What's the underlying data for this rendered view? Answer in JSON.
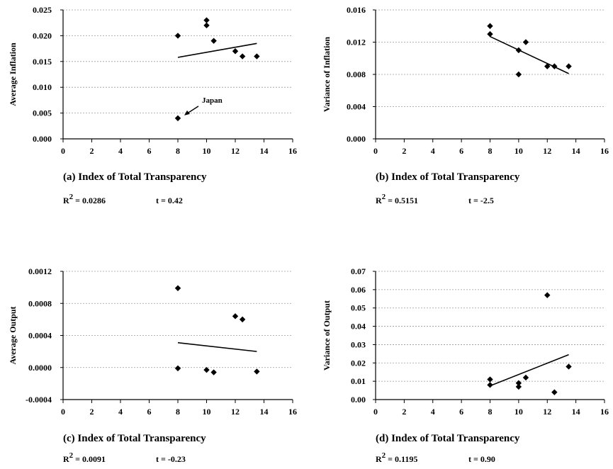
{
  "chart_data": [
    {
      "id": "a",
      "type": "scatter",
      "ylabel": "Average Inflation",
      "caption": "(a) Index of Total Transparency",
      "r2_label": "R",
      "r2_sup": "2",
      "r2_value": " = 0.0286",
      "t_text": "t = 0.42",
      "xlim": [
        0,
        16
      ],
      "ylim": [
        0,
        0.025
      ],
      "xticks": [
        "0",
        "2",
        "4",
        "6",
        "8",
        "10",
        "12",
        "14",
        "16"
      ],
      "yticks": [
        "0.000",
        "0.005",
        "0.010",
        "0.015",
        "0.020",
        "0.025"
      ],
      "points": [
        [
          8,
          0.02
        ],
        [
          8,
          0.004
        ],
        [
          10,
          0.023
        ],
        [
          10,
          0.022
        ],
        [
          10.5,
          0.019
        ],
        [
          12,
          0.017
        ],
        [
          12.5,
          0.016
        ],
        [
          13.5,
          0.016
        ]
      ],
      "trend": [
        [
          8,
          0.0158
        ],
        [
          13.5,
          0.0185
        ]
      ],
      "annotation": {
        "text": "Japan",
        "x": 8,
        "y": 0.004
      }
    },
    {
      "id": "b",
      "type": "scatter",
      "ylabel": "Variance of Inflation",
      "caption": "(b) Index of Total Transparency",
      "r2_label": "R",
      "r2_sup": "2",
      "r2_value": " = 0.5151",
      "t_text": "t = -2.5",
      "xlim": [
        0,
        16
      ],
      "ylim": [
        0,
        0.016
      ],
      "xticks": [
        "0",
        "2",
        "4",
        "6",
        "8",
        "10",
        "12",
        "14",
        "16"
      ],
      "yticks": [
        "0.000",
        "0.004",
        "0.008",
        "0.012",
        "0.016"
      ],
      "points": [
        [
          8,
          0.014
        ],
        [
          8,
          0.013
        ],
        [
          10,
          0.011
        ],
        [
          10,
          0.008
        ],
        [
          10.5,
          0.012
        ],
        [
          12,
          0.009
        ],
        [
          12.5,
          0.009
        ],
        [
          13.5,
          0.009
        ]
      ],
      "trend": [
        [
          8,
          0.0127
        ],
        [
          13.5,
          0.0081
        ]
      ]
    },
    {
      "id": "c",
      "type": "scatter",
      "ylabel": "Average Output",
      "caption": "(c) Index of Total Transparency",
      "r2_label": "R",
      "r2_sup": "2",
      "r2_value": " = 0.0091",
      "t_text": "t = -0.23",
      "xlim": [
        0,
        16
      ],
      "ylim": [
        -0.0004,
        0.0012
      ],
      "xticks": [
        "0",
        "2",
        "4",
        "6",
        "8",
        "10",
        "12",
        "14",
        "16"
      ],
      "yticks": [
        "-0.0004",
        "0.0000",
        "0.0004",
        "0.0008",
        "0.0012"
      ],
      "points": [
        [
          8,
          0.00099
        ],
        [
          8,
          -1e-05
        ],
        [
          10,
          -3e-05
        ],
        [
          10.5,
          -6e-05
        ],
        [
          12,
          0.00064
        ],
        [
          12.5,
          0.0006
        ],
        [
          13.5,
          -5e-05
        ]
      ],
      "trend": [
        [
          8,
          0.00031
        ],
        [
          13.5,
          0.0002
        ]
      ]
    },
    {
      "id": "d",
      "type": "scatter",
      "ylabel": "Variance of Output",
      "caption": "(d) Index of Total Transparency",
      "r2_label": "R",
      "r2_sup": "2",
      "r2_value": " = 0.1195",
      "t_text": "t = 0.90",
      "xlim": [
        0,
        16
      ],
      "ylim": [
        0,
        0.07
      ],
      "xticks": [
        "0",
        "2",
        "4",
        "6",
        "8",
        "10",
        "12",
        "14",
        "16"
      ],
      "yticks": [
        "0.00",
        "0.01",
        "0.02",
        "0.03",
        "0.04",
        "0.05",
        "0.06",
        "0.07"
      ],
      "points": [
        [
          8,
          0.011
        ],
        [
          8,
          0.008
        ],
        [
          10,
          0.009
        ],
        [
          10,
          0.007
        ],
        [
          10.5,
          0.012
        ],
        [
          12,
          0.057
        ],
        [
          12.5,
          0.004
        ],
        [
          13.5,
          0.018
        ]
      ],
      "trend": [
        [
          8,
          0.0075
        ],
        [
          13.5,
          0.0245
        ]
      ]
    }
  ]
}
